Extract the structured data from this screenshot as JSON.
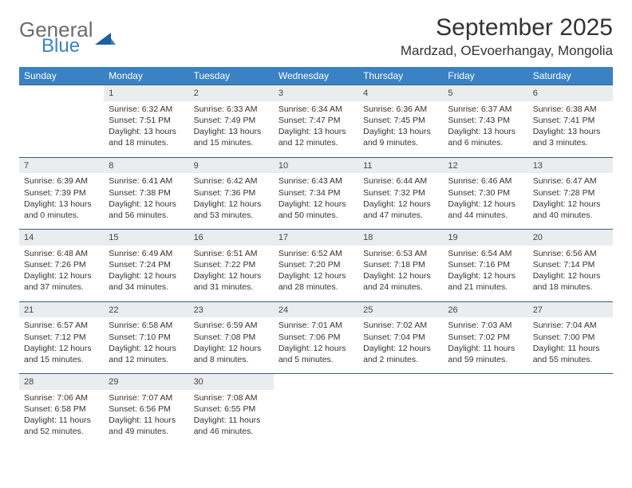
{
  "logo": {
    "line1": "General",
    "line2": "Blue",
    "accent": "#3b82c4",
    "grey": "#6b6b6b"
  },
  "title": "September 2025",
  "location": "Mardzad, OEvoerhangay, Mongolia",
  "colors": {
    "header_bg": "#3b82c4",
    "header_text": "#ffffff",
    "daynum_bg": "#e9edf0",
    "rule": "#3b5f7a",
    "text": "#333333"
  },
  "weekdays": [
    "Sunday",
    "Monday",
    "Tuesday",
    "Wednesday",
    "Thursday",
    "Friday",
    "Saturday"
  ],
  "weeks": [
    [
      null,
      {
        "n": "1",
        "sr": "6:32 AM",
        "ss": "7:51 PM",
        "dl": "13 hours and 18 minutes."
      },
      {
        "n": "2",
        "sr": "6:33 AM",
        "ss": "7:49 PM",
        "dl": "13 hours and 15 minutes."
      },
      {
        "n": "3",
        "sr": "6:34 AM",
        "ss": "7:47 PM",
        "dl": "13 hours and 12 minutes."
      },
      {
        "n": "4",
        "sr": "6:36 AM",
        "ss": "7:45 PM",
        "dl": "13 hours and 9 minutes."
      },
      {
        "n": "5",
        "sr": "6:37 AM",
        "ss": "7:43 PM",
        "dl": "13 hours and 6 minutes."
      },
      {
        "n": "6",
        "sr": "6:38 AM",
        "ss": "7:41 PM",
        "dl": "13 hours and 3 minutes."
      }
    ],
    [
      {
        "n": "7",
        "sr": "6:39 AM",
        "ss": "7:39 PM",
        "dl": "13 hours and 0 minutes."
      },
      {
        "n": "8",
        "sr": "6:41 AM",
        "ss": "7:38 PM",
        "dl": "12 hours and 56 minutes."
      },
      {
        "n": "9",
        "sr": "6:42 AM",
        "ss": "7:36 PM",
        "dl": "12 hours and 53 minutes."
      },
      {
        "n": "10",
        "sr": "6:43 AM",
        "ss": "7:34 PM",
        "dl": "12 hours and 50 minutes."
      },
      {
        "n": "11",
        "sr": "6:44 AM",
        "ss": "7:32 PM",
        "dl": "12 hours and 47 minutes."
      },
      {
        "n": "12",
        "sr": "6:46 AM",
        "ss": "7:30 PM",
        "dl": "12 hours and 44 minutes."
      },
      {
        "n": "13",
        "sr": "6:47 AM",
        "ss": "7:28 PM",
        "dl": "12 hours and 40 minutes."
      }
    ],
    [
      {
        "n": "14",
        "sr": "6:48 AM",
        "ss": "7:26 PM",
        "dl": "12 hours and 37 minutes."
      },
      {
        "n": "15",
        "sr": "6:49 AM",
        "ss": "7:24 PM",
        "dl": "12 hours and 34 minutes."
      },
      {
        "n": "16",
        "sr": "6:51 AM",
        "ss": "7:22 PM",
        "dl": "12 hours and 31 minutes."
      },
      {
        "n": "17",
        "sr": "6:52 AM",
        "ss": "7:20 PM",
        "dl": "12 hours and 28 minutes."
      },
      {
        "n": "18",
        "sr": "6:53 AM",
        "ss": "7:18 PM",
        "dl": "12 hours and 24 minutes."
      },
      {
        "n": "19",
        "sr": "6:54 AM",
        "ss": "7:16 PM",
        "dl": "12 hours and 21 minutes."
      },
      {
        "n": "20",
        "sr": "6:56 AM",
        "ss": "7:14 PM",
        "dl": "12 hours and 18 minutes."
      }
    ],
    [
      {
        "n": "21",
        "sr": "6:57 AM",
        "ss": "7:12 PM",
        "dl": "12 hours and 15 minutes."
      },
      {
        "n": "22",
        "sr": "6:58 AM",
        "ss": "7:10 PM",
        "dl": "12 hours and 12 minutes."
      },
      {
        "n": "23",
        "sr": "6:59 AM",
        "ss": "7:08 PM",
        "dl": "12 hours and 8 minutes."
      },
      {
        "n": "24",
        "sr": "7:01 AM",
        "ss": "7:06 PM",
        "dl": "12 hours and 5 minutes."
      },
      {
        "n": "25",
        "sr": "7:02 AM",
        "ss": "7:04 PM",
        "dl": "12 hours and 2 minutes."
      },
      {
        "n": "26",
        "sr": "7:03 AM",
        "ss": "7:02 PM",
        "dl": "11 hours and 59 minutes."
      },
      {
        "n": "27",
        "sr": "7:04 AM",
        "ss": "7:00 PM",
        "dl": "11 hours and 55 minutes."
      }
    ],
    [
      {
        "n": "28",
        "sr": "7:06 AM",
        "ss": "6:58 PM",
        "dl": "11 hours and 52 minutes."
      },
      {
        "n": "29",
        "sr": "7:07 AM",
        "ss": "6:56 PM",
        "dl": "11 hours and 49 minutes."
      },
      {
        "n": "30",
        "sr": "7:08 AM",
        "ss": "6:55 PM",
        "dl": "11 hours and 46 minutes."
      },
      null,
      null,
      null,
      null
    ]
  ],
  "labels": {
    "sunrise": "Sunrise:",
    "sunset": "Sunset:",
    "daylight": "Daylight:"
  }
}
